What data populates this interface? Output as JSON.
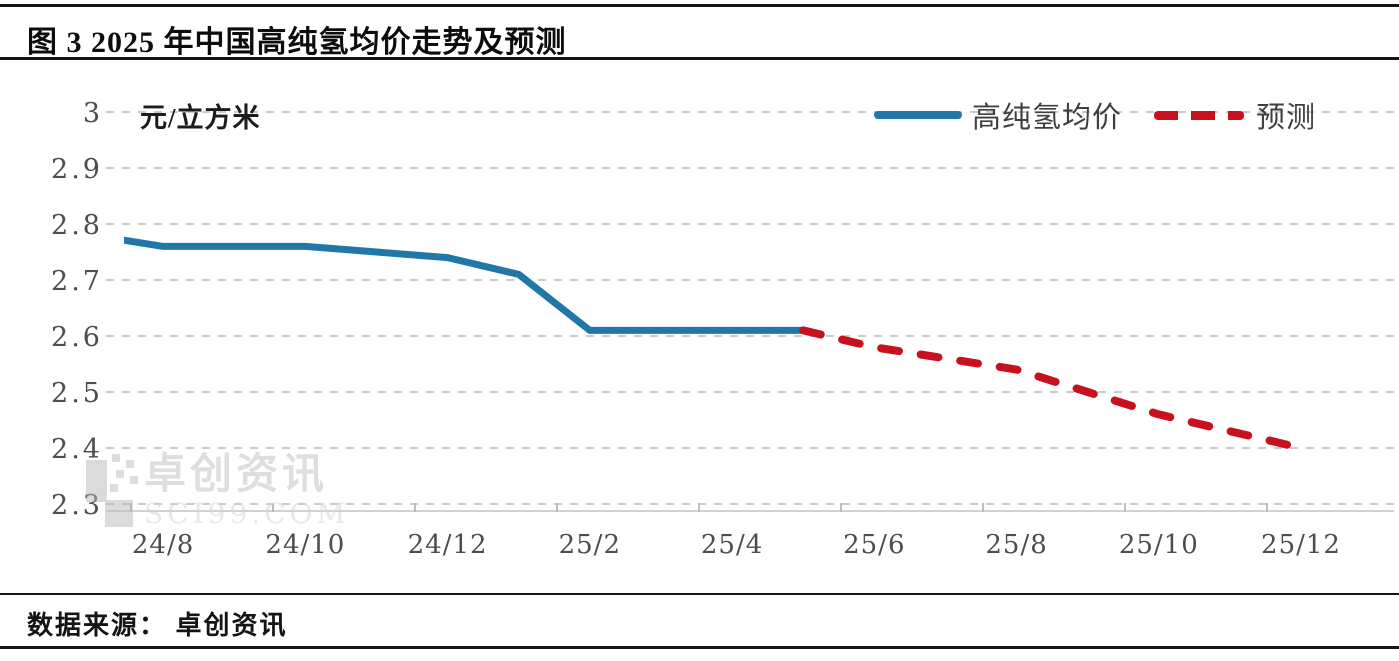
{
  "header": {
    "title": "图 3  2025 年中国高纯氢均价走势及预测"
  },
  "footer": {
    "source": "数据来源： 卓创资讯"
  },
  "watermark": {
    "brand": "卓创资讯",
    "domain": "SCI99.COM",
    "logo": "sci99-qr-logo"
  },
  "colors": {
    "actual_line": "#1f78a8",
    "forecast_line": "#c8101e",
    "gridline": "#cbcbcb",
    "tick_text": "#4d4d4d",
    "title_text": "#0d0d0d"
  },
  "chart_data": {
    "type": "line",
    "title": "图 3  2025 年中国高纯氢均价走势及预测",
    "unit_label": "元/立方米",
    "xlabel": "",
    "ylabel": "元/立方米",
    "ylim": [
      2.3,
      3.0
    ],
    "grid": "horizontal-dashed",
    "legend_position": "top-right",
    "categories": [
      "24/7",
      "24/8",
      "24/9",
      "24/10",
      "24/11",
      "24/12",
      "25/1",
      "25/2",
      "25/3",
      "25/4",
      "25/5",
      "25/6",
      "25/7",
      "25/8",
      "25/9",
      "25/10",
      "25/11",
      "25/12"
    ],
    "x_tick_labels": [
      "24/8",
      "24/10",
      "24/12",
      "25/2",
      "25/4",
      "25/6",
      "25/8",
      "25/10",
      "25/12"
    ],
    "y_ticks": [
      3,
      2.9,
      2.8,
      2.7,
      2.6,
      2.5,
      2.4,
      2.3
    ],
    "y_tick_labels": [
      "3",
      "2.9",
      "2.8",
      "2.7",
      "2.6",
      "2.5",
      "2.4",
      "2.3"
    ],
    "series": [
      {
        "name": "高纯氢均价",
        "style": "solid",
        "color": "#1f78a8",
        "values": [
          2.78,
          2.76,
          2.76,
          2.76,
          2.75,
          2.74,
          2.71,
          2.61,
          2.61,
          2.61,
          2.61,
          null,
          null,
          null,
          null,
          null,
          null,
          null
        ]
      },
      {
        "name": "预测",
        "style": "dashed",
        "color": "#c8101e",
        "values": [
          null,
          null,
          null,
          null,
          null,
          null,
          null,
          null,
          null,
          null,
          2.61,
          2.58,
          2.56,
          2.54,
          2.5,
          2.46,
          2.43,
          2.4
        ]
      }
    ]
  }
}
